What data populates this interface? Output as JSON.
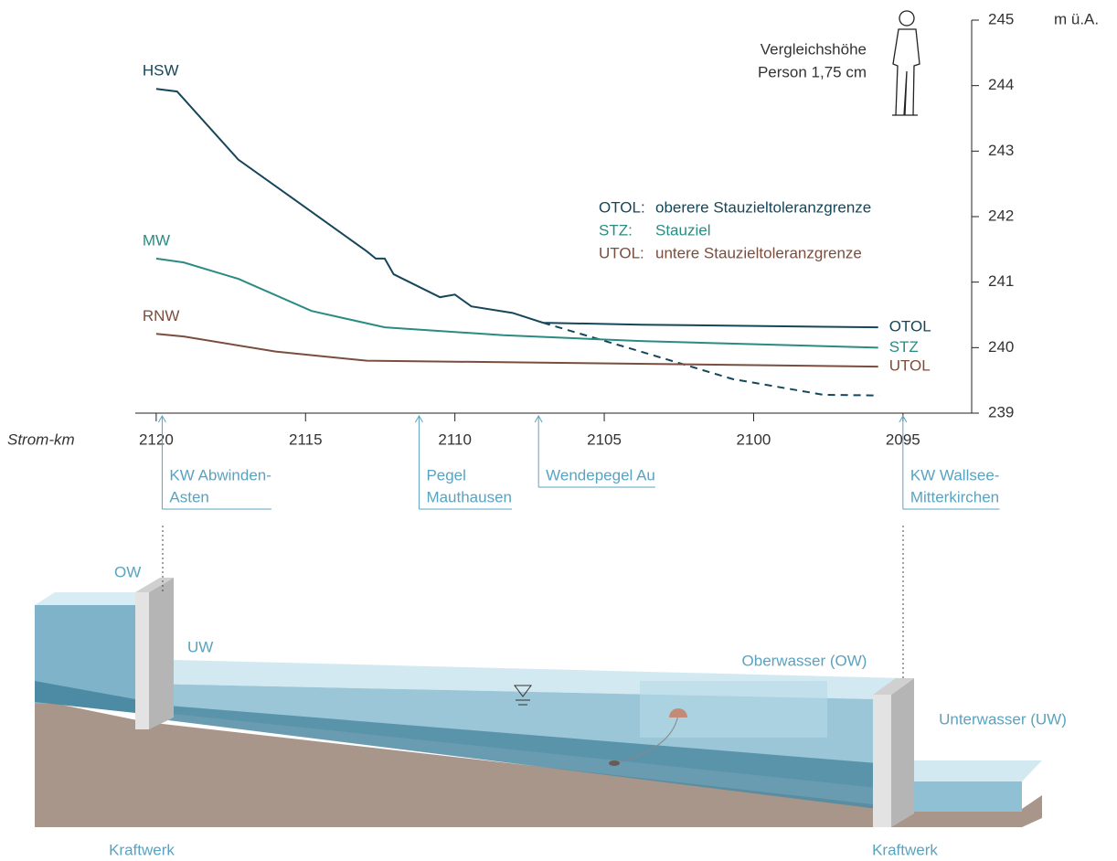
{
  "chart_data": {
    "type": "line",
    "x_label": "Strom-km",
    "y_label": "m ü.A.",
    "xlim": [
      2120.7,
      2092.7
    ],
    "ylim": [
      239,
      245
    ],
    "xticks": [
      2120,
      2115,
      2110,
      2105,
      2100,
      2095
    ],
    "yticks": [
      239,
      240,
      241,
      242,
      243,
      244,
      245
    ],
    "series": [
      {
        "name": "HSW",
        "end_label": "OTOL",
        "color": "#15465a",
        "x": [
          2120,
          2119.3,
          2117.25,
          2115.4,
          2112.95,
          2112.65,
          2112.35,
          2112.05,
          2110.5,
          2110,
          2109.45,
          2108.07,
          2107.05,
          2103.78,
          2095.83
        ],
        "values": [
          243.95,
          243.91,
          242.87,
          242.27,
          241.47,
          241.36,
          241.36,
          241.12,
          240.77,
          240.81,
          240.63,
          240.53,
          240.38,
          240.35,
          240.31
        ]
      },
      {
        "color": "#15465a",
        "dashed": true,
        "x": [
          2107.05,
          2103.78,
          2100.7,
          2097.66,
          2095.8
        ],
        "values": [
          240.38,
          239.94,
          239.52,
          239.28,
          239.27
        ]
      },
      {
        "name": "MW",
        "end_label": "STZ",
        "color": "#2a8b83",
        "x": [
          2120,
          2119.08,
          2117.25,
          2114.8,
          2112.35,
          2108.37,
          2103.78,
          2095.83
        ],
        "values": [
          241.36,
          241.3,
          241.05,
          240.56,
          240.31,
          240.19,
          240.1,
          240.0
        ]
      },
      {
        "name": "RNW",
        "end_label": "UTOL",
        "color": "#7a4e3e",
        "x": [
          2120,
          2119.08,
          2116.0,
          2112.95,
          2106.8,
          2095.83
        ],
        "values": [
          240.21,
          240.17,
          239.94,
          239.8,
          239.77,
          239.71
        ]
      }
    ],
    "legend": [
      {
        "key": "OTOL:",
        "text": "oberere Stauzieltoleranzgrenze",
        "color": "#15465a"
      },
      {
        "key": "STZ:",
        "text": "Stauziel",
        "color": "#2a8b83"
      },
      {
        "key": "UTOL:",
        "text": "untere Stauzieltoleranzgrenze",
        "color": "#7a4e3e"
      }
    ],
    "annotation": [
      "Vergleichshöhe",
      "Person 1,75 cm"
    ],
    "stations": [
      {
        "km": 2119.8,
        "label": [
          "KW Abwinden-",
          "Asten"
        ]
      },
      {
        "km": 2111.2,
        "label": [
          "Pegel",
          "Mauthausen"
        ]
      },
      {
        "km": 2107.2,
        "label": [
          "Wendepegel Au"
        ]
      },
      {
        "km": 2095,
        "label": [
          "KW Wallsee-",
          "Mitterkirchen"
        ]
      }
    ]
  },
  "diagram": {
    "labels": [
      "OW",
      "UW",
      "Oberwasser (OW)",
      "Unterwasser (UW)",
      "Kraftwerk",
      "Kraftwerk"
    ]
  }
}
